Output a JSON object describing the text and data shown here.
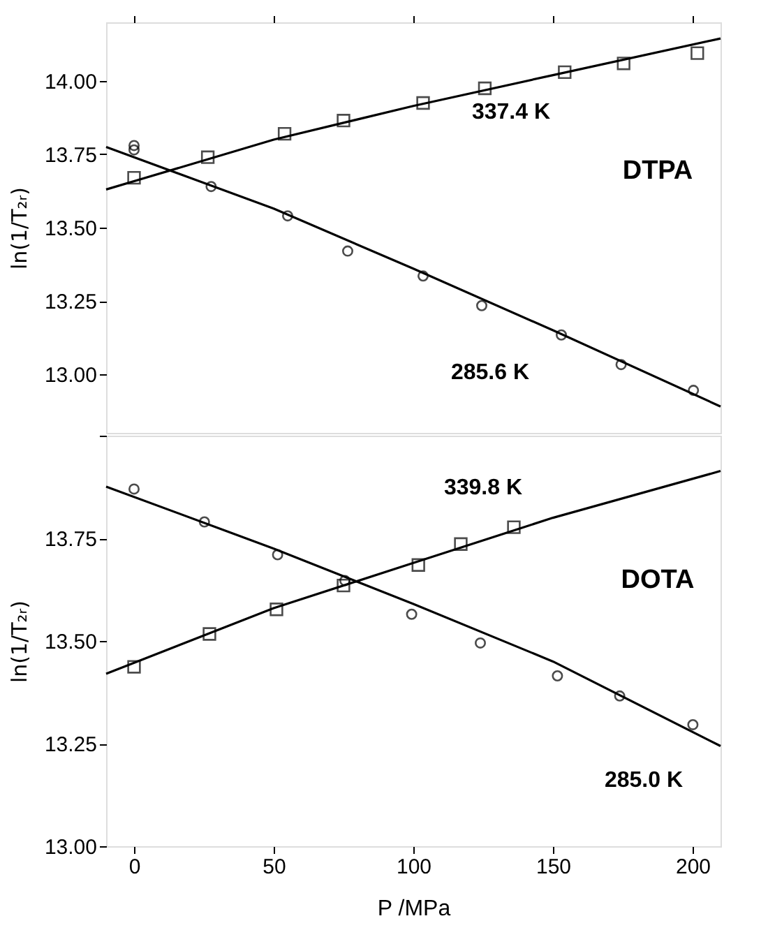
{
  "chart_data": [
    {
      "type": "scatter",
      "ylabel": "ln(1/T₂ᵣ)",
      "xlim": [
        -10,
        210
      ],
      "xticks": [
        0,
        50,
        100,
        150,
        200
      ],
      "ylim": [
        12.8,
        14.2
      ],
      "yticks": [
        {
          "value": 13.0,
          "label": "13.00"
        },
        {
          "value": 13.25,
          "label": "13.25"
        },
        {
          "value": 13.5,
          "label": "13.50"
        },
        {
          "value": 13.75,
          "label": "13.75"
        },
        {
          "value": 14.0,
          "label": "14.00"
        }
      ],
      "tick_labels": "y",
      "grid": false,
      "annotations": [
        "DTPA"
      ],
      "series": [
        {
          "marker": "square",
          "color": "#000000",
          "x": [
            0,
            26.4,
            53.9,
            75,
            103.5,
            125.6,
            154.2,
            175.3,
            201.7
          ],
          "values": [
            13.67,
            13.74,
            13.82,
            13.865,
            13.925,
            13.975,
            14.03,
            14.06,
            14.095
          ]
        },
        {
          "marker": "circle",
          "color": "#000000",
          "x": [
            0,
            0,
            27.6,
            55,
            76.5,
            103.5,
            124.5,
            153,
            174.4,
            200.3
          ],
          "values": [
            13.78,
            13.765,
            13.64,
            13.54,
            13.42,
            13.335,
            13.234,
            13.134,
            13.033,
            12.945
          ]
        },
        {
          "type": "line",
          "name": "337.4 K",
          "line_style": "solid",
          "color": "#000000",
          "x": [
            -10,
            50,
            100,
            150,
            210
          ],
          "values": [
            13.63,
            13.8,
            13.915,
            14.02,
            14.145
          ]
        },
        {
          "type": "line",
          "name": "285.6 K",
          "line_style": "solid",
          "color": "#000000",
          "x": [
            -10,
            50,
            100,
            150,
            210
          ],
          "values": [
            13.775,
            13.565,
            13.36,
            13.15,
            12.89
          ]
        }
      ]
    },
    {
      "type": "scatter",
      "ylabel": "ln(1/T₂ᵣ)",
      "xlabel": "P     /MPa",
      "xlim": [
        -10,
        210
      ],
      "xticks": [
        0,
        50,
        100,
        150,
        200
      ],
      "ylim": [
        13.0,
        14.0
      ],
      "yticks": [
        {
          "value": 13.0,
          "label": "13.00"
        },
        {
          "value": 13.25,
          "label": "13.25"
        },
        {
          "value": 13.5,
          "label": "13.50"
        },
        {
          "value": 13.75,
          "label": "13.75"
        },
        {
          "value": 14.0,
          "label": null
        }
      ],
      "grid": false,
      "annotations": [
        "DOTA"
      ],
      "series": [
        {
          "marker": "circle",
          "color": "#000000",
          "x": [
            0,
            25.2,
            51.4,
            75.5,
            99.4,
            124,
            151.6,
            173.9,
            200.1
          ],
          "values": [
            13.87,
            13.79,
            13.71,
            13.647,
            13.565,
            13.495,
            13.415,
            13.366,
            13.296
          ]
        },
        {
          "marker": "square",
          "color": "#000000",
          "x": [
            0,
            27,
            51,
            75,
            101.8,
            117,
            136
          ],
          "values": [
            13.437,
            13.517,
            13.577,
            13.635,
            13.685,
            13.736,
            13.777
          ]
        },
        {
          "type": "line",
          "name": "339.8 K",
          "line_style": "solid",
          "color": "#000000",
          "x": [
            -10,
            50,
            100,
            150,
            210
          ],
          "values": [
            13.42,
            13.58,
            13.69,
            13.8,
            13.914
          ]
        },
        {
          "type": "line",
          "name": "285.0 K",
          "line_style": "solid",
          "color": "#000000",
          "x": [
            -10,
            50,
            100,
            150,
            210
          ],
          "values": [
            13.876,
            13.725,
            13.59,
            13.45,
            13.244
          ]
        }
      ]
    }
  ]
}
